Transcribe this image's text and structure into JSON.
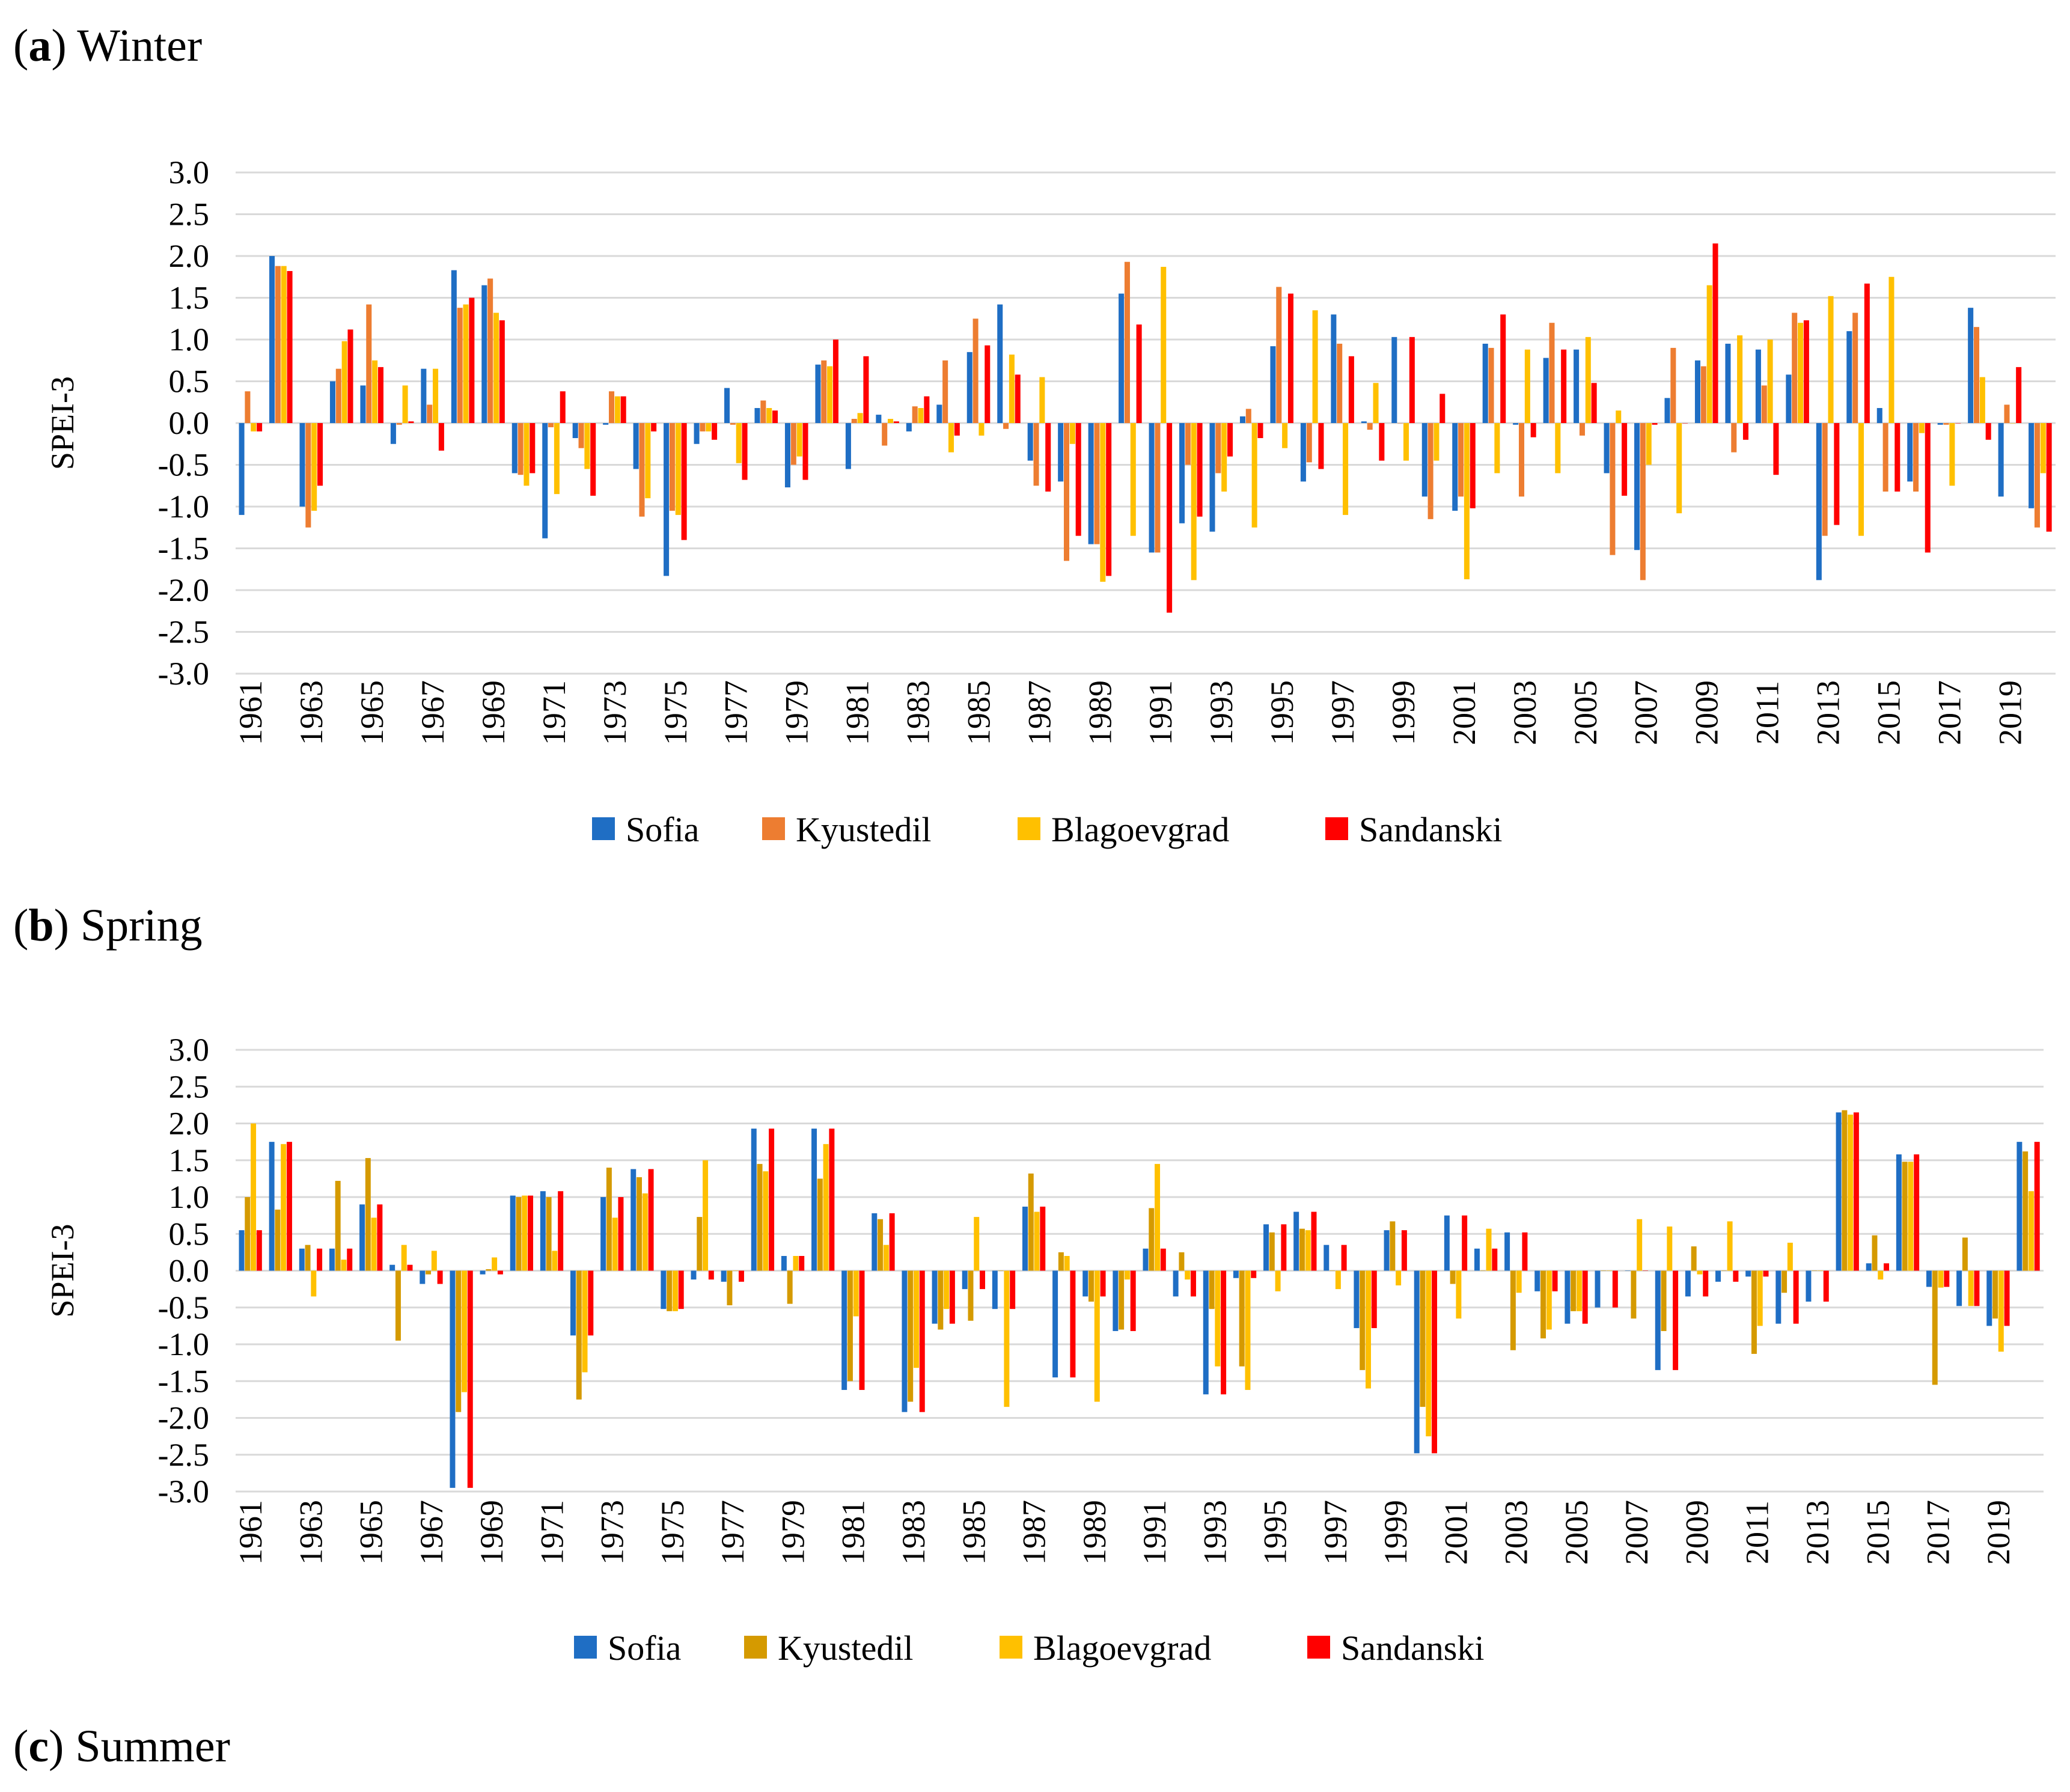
{
  "panels": [
    {
      "letter": "a",
      "title": "Winter"
    },
    {
      "letter": "b",
      "title": "Spring"
    },
    {
      "letter": "c",
      "title": "Summer"
    }
  ],
  "colors": {
    "Sofia": "#1f6ec4",
    "Kyustedil_a": "#ed7d31",
    "Kyustedil_b": "#d59a00",
    "Blagoevgrad": "#ffc000",
    "Sandanski": "#ff0000",
    "grid": "#d9d9d9"
  },
  "chart_data": [
    {
      "type": "bar",
      "title": "(a) Winter",
      "ylabel": "SPEI-3",
      "xlabel": "",
      "ylim": [
        -3.0,
        3.0
      ],
      "yticks": [
        "3.0",
        "2.5",
        "2.0",
        "1.5",
        "1.0",
        "0.5",
        "0.0",
        "-0.5",
        "-1.0",
        "-1.5",
        "-2.0",
        "-2.5",
        "-3.0"
      ],
      "categories": [
        "1961",
        "1962",
        "1963",
        "1964",
        "1965",
        "1966",
        "1967",
        "1968",
        "1969",
        "1970",
        "1971",
        "1972",
        "1973",
        "1974",
        "1975",
        "1976",
        "1977",
        "1978",
        "1979",
        "1980",
        "1981",
        "1982",
        "1983",
        "1984",
        "1985",
        "1986",
        "1987",
        "1988",
        "1989",
        "1990",
        "1991",
        "1992",
        "1993",
        "1994",
        "1995",
        "1996",
        "1997",
        "1998",
        "1999",
        "2000",
        "2001",
        "2002",
        "2003",
        "2004",
        "2005",
        "2006",
        "2007",
        "2008",
        "2009",
        "2010",
        "2011",
        "2012",
        "2013",
        "2014",
        "2015",
        "2016",
        "2017",
        "2018",
        "2019",
        "2020"
      ],
      "xtick_labels": [
        "1961",
        "1963",
        "1965",
        "1967",
        "1969",
        "1971",
        "1973",
        "1975",
        "1977",
        "1979",
        "1981",
        "1983",
        "1985",
        "1987",
        "1989",
        "1991",
        "1993",
        "1995",
        "1997",
        "1999",
        "2001",
        "2003",
        "2005",
        "2007",
        "2009",
        "2011",
        "2013",
        "2015",
        "2017",
        "2019"
      ],
      "legend": [
        "Sofia",
        "Kyustedil",
        "Blagoevgrad",
        "Sandanski"
      ],
      "series": [
        {
          "name": "Sofia",
          "values": [
            -1.1,
            2.0,
            -1.0,
            0.5,
            0.45,
            -0.25,
            0.65,
            1.83,
            1.65,
            -0.6,
            -1.38,
            -0.18,
            -0.02,
            -0.55,
            -1.83,
            -0.25,
            0.42,
            0.18,
            -0.77,
            0.7,
            -0.55,
            0.1,
            -0.1,
            0.22,
            0.85,
            1.42,
            -0.45,
            -0.7,
            -1.45,
            1.55,
            -1.55,
            -1.2,
            -1.3,
            0.08,
            0.92,
            -0.7,
            1.3,
            0.02,
            1.03,
            -0.88,
            -1.05,
            0.95,
            -0.02,
            0.78,
            0.88,
            -0.6,
            -1.52,
            0.3,
            0.75,
            0.95,
            0.88,
            0.58,
            -1.88,
            1.1,
            0.18,
            -0.7,
            -0.02,
            1.38,
            -0.88,
            -1.02
          ]
        },
        {
          "name": "Kyustedil",
          "values": [
            0.38,
            1.88,
            -1.25,
            0.65,
            1.42,
            -0.02,
            0.22,
            1.38,
            1.73,
            -0.62,
            -0.05,
            -0.3,
            0.38,
            -1.12,
            -1.05,
            -0.1,
            -0.02,
            0.27,
            -0.5,
            0.75,
            0.05,
            -0.27,
            0.2,
            0.75,
            1.25,
            -0.07,
            -0.75,
            -1.65,
            -1.45,
            1.93,
            -1.55,
            -0.5,
            -0.6,
            0.17,
            1.63,
            -0.47,
            0.95,
            -0.08,
            0.0,
            -1.15,
            -0.88,
            0.9,
            -0.88,
            1.2,
            -0.15,
            -1.58,
            -1.88,
            0.9,
            0.68,
            -0.35,
            0.45,
            1.32,
            -1.35,
            1.32,
            -0.82,
            -0.82,
            -0.02,
            1.15,
            0.22,
            -1.25
          ]
        },
        {
          "name": "Blagoevgrad",
          "values": [
            -0.1,
            1.88,
            -1.05,
            0.98,
            0.75,
            0.45,
            0.65,
            1.42,
            1.32,
            -0.75,
            -0.85,
            -0.55,
            0.32,
            -0.9,
            -1.1,
            -0.1,
            -0.48,
            0.18,
            -0.4,
            0.68,
            0.12,
            0.05,
            0.18,
            -0.35,
            -0.15,
            0.82,
            0.55,
            -0.25,
            -1.9,
            -1.35,
            1.87,
            -1.88,
            -0.82,
            -1.25,
            -0.3,
            1.35,
            -1.1,
            0.48,
            -0.45,
            -0.45,
            -1.87,
            -0.6,
            0.88,
            -0.6,
            1.03,
            0.15,
            -0.5,
            -1.08,
            1.65,
            1.05,
            1.0,
            1.2,
            1.52,
            -1.35,
            1.75,
            -0.12,
            -0.75,
            0.55,
            0.0,
            -0.6
          ]
        },
        {
          "name": "Sandanski",
          "values": [
            -0.1,
            1.82,
            -0.75,
            1.12,
            0.67,
            0.02,
            -0.33,
            1.5,
            1.23,
            -0.6,
            0.38,
            -0.87,
            0.32,
            -0.1,
            -1.4,
            -0.2,
            -0.68,
            0.15,
            -0.68,
            1.0,
            0.8,
            0.02,
            0.32,
            -0.15,
            0.93,
            0.58,
            -0.82,
            -1.35,
            -1.83,
            1.18,
            -2.27,
            -1.12,
            -0.4,
            -0.18,
            1.55,
            -0.55,
            0.8,
            -0.45,
            1.03,
            0.35,
            -1.02,
            1.3,
            -0.17,
            0.88,
            0.48,
            -0.87,
            -0.02,
            0.0,
            2.15,
            -0.2,
            -0.62,
            1.23,
            -1.22,
            1.67,
            -0.82,
            -1.55,
            0.0,
            -0.2,
            0.67,
            -1.3
          ]
        }
      ]
    },
    {
      "type": "bar",
      "title": "(b) Spring",
      "ylabel": "SPEI-3",
      "xlabel": "",
      "ylim": [
        -3.0,
        3.0
      ],
      "yticks": [
        "3.0",
        "2.5",
        "2.0",
        "1.5",
        "1.0",
        "0.5",
        "0.0",
        "-0.5",
        "-1.0",
        "-1.5",
        "-2.0",
        "-2.5",
        "-3.0"
      ],
      "categories": [
        "1961",
        "1962",
        "1963",
        "1964",
        "1965",
        "1966",
        "1967",
        "1968",
        "1969",
        "1970",
        "1971",
        "1972",
        "1973",
        "1974",
        "1975",
        "1976",
        "1977",
        "1978",
        "1979",
        "1980",
        "1981",
        "1982",
        "1983",
        "1984",
        "1985",
        "1986",
        "1987",
        "1988",
        "1989",
        "1990",
        "1991",
        "1992",
        "1993",
        "1994",
        "1995",
        "1996",
        "1997",
        "1998",
        "1999",
        "2000",
        "2001",
        "2002",
        "2003",
        "2004",
        "2005",
        "2006",
        "2007",
        "2008",
        "2009",
        "2010",
        "2011",
        "2012",
        "2013",
        "2014",
        "2015",
        "2016",
        "2017",
        "2018",
        "2019",
        "2020"
      ],
      "xtick_labels": [
        "1961",
        "1963",
        "1965",
        "1967",
        "1969",
        "1971",
        "1973",
        "1975",
        "1977",
        "1979",
        "1981",
        "1983",
        "1985",
        "1987",
        "1989",
        "1991",
        "1993",
        "1995",
        "1997",
        "1999",
        "2001",
        "2003",
        "2005",
        "2007",
        "2009",
        "2011",
        "2013",
        "2015",
        "2017",
        "2019"
      ],
      "legend": [
        "Sofia",
        "Kyustedil",
        "Blagoevgrad",
        "Sandanski"
      ],
      "series": [
        {
          "name": "Sofia",
          "values": [
            0.55,
            1.75,
            0.3,
            0.3,
            0.9,
            0.08,
            -0.18,
            -2.95,
            -0.05,
            1.02,
            1.08,
            -0.88,
            1.0,
            1.38,
            -0.52,
            -0.12,
            -0.15,
            1.93,
            0.2,
            1.93,
            -1.62,
            0.78,
            -1.92,
            -0.72,
            -0.25,
            -0.52,
            0.87,
            -1.45,
            -0.35,
            -0.82,
            0.3,
            -0.35,
            -1.68,
            -0.1,
            0.63,
            0.8,
            0.35,
            -0.78,
            0.55,
            -2.48,
            0.75,
            0.3,
            0.52,
            -0.28,
            -0.72,
            -0.5,
            0.0,
            -1.35,
            -0.35,
            -0.15,
            -0.08,
            -0.72,
            -0.42,
            2.15,
            0.1,
            1.58,
            -0.22,
            -0.48,
            -0.75,
            1.75
          ]
        },
        {
          "name": "Kyustedil",
          "values": [
            1.0,
            0.83,
            0.35,
            1.22,
            1.53,
            -0.95,
            -0.05,
            -1.92,
            0.02,
            1.0,
            1.0,
            -1.75,
            1.4,
            1.27,
            -0.55,
            0.73,
            -0.47,
            1.45,
            -0.45,
            1.25,
            -1.5,
            0.7,
            -1.78,
            -0.8,
            -0.68,
            0.0,
            1.32,
            0.25,
            -0.42,
            -0.8,
            0.85,
            0.25,
            -0.52,
            -1.3,
            0.52,
            0.57,
            0.0,
            -1.35,
            0.67,
            -1.85,
            -0.18,
            0.0,
            -1.08,
            -0.92,
            -0.55,
            0.0,
            -0.65,
            -0.82,
            0.33,
            0.0,
            -1.13,
            -0.3,
            0.0,
            2.18,
            0.48,
            1.48,
            -1.55,
            0.45,
            -0.65,
            1.62
          ]
        },
        {
          "name": "Blagoevgrad",
          "values": [
            2.0,
            1.72,
            -0.35,
            0.15,
            0.72,
            0.35,
            0.27,
            -1.65,
            0.18,
            1.02,
            0.27,
            -1.38,
            0.72,
            1.05,
            -0.55,
            1.5,
            0.0,
            1.35,
            0.2,
            1.72,
            -0.62,
            0.35,
            -1.32,
            -0.52,
            0.73,
            -1.85,
            0.8,
            0.2,
            -1.78,
            -0.12,
            1.45,
            -0.12,
            -1.3,
            -1.62,
            -0.28,
            0.55,
            -0.25,
            -1.6,
            -0.2,
            -2.25,
            -0.65,
            0.57,
            -0.3,
            -0.8,
            -0.55,
            0.0,
            0.7,
            0.6,
            -0.05,
            0.67,
            -0.75,
            0.38,
            0.0,
            2.12,
            -0.12,
            1.48,
            -0.23,
            -0.48,
            -1.1,
            1.08
          ]
        },
        {
          "name": "Sandanski",
          "values": [
            0.55,
            1.75,
            0.3,
            0.3,
            0.9,
            0.08,
            -0.18,
            -2.95,
            -0.05,
            1.02,
            1.08,
            -0.88,
            1.0,
            1.38,
            -0.52,
            -0.12,
            -0.15,
            1.93,
            0.2,
            1.93,
            -1.62,
            0.78,
            -1.92,
            -0.72,
            -0.25,
            -0.52,
            0.87,
            -1.45,
            -0.35,
            -0.82,
            0.3,
            -0.35,
            -1.68,
            -0.1,
            0.63,
            0.8,
            0.35,
            -0.78,
            0.55,
            -2.48,
            0.75,
            0.3,
            0.52,
            -0.28,
            -0.72,
            -0.5,
            0.0,
            -1.35,
            -0.35,
            -0.15,
            -0.08,
            -0.72,
            -0.42,
            2.15,
            0.1,
            1.58,
            -0.22,
            -0.48,
            -0.75,
            1.75
          ]
        }
      ]
    }
  ]
}
